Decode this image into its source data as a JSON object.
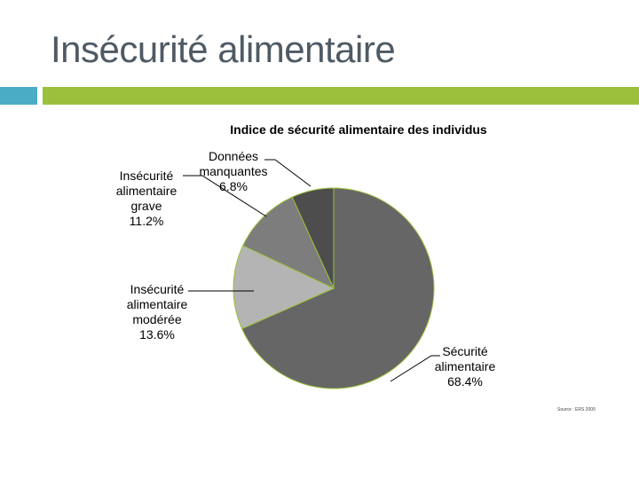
{
  "slide": {
    "title": "Insécurité alimentaire",
    "source": "Source : ERS 2009"
  },
  "colors": {
    "title_text": "#4f5a64",
    "accent_blue": "#4bacc6",
    "accent_green": "#9bc13c"
  },
  "chart_data": {
    "type": "pie",
    "title": "Indice de sécurité alimentaire des individus",
    "slices": [
      {
        "label": [
          "Sécurité",
          "alimentaire",
          "68.4%"
        ],
        "value": 68.4,
        "color": "#666666"
      },
      {
        "label": [
          "Insécurité",
          "alimentaire",
          "modérée",
          "13.6%"
        ],
        "value": 13.6,
        "color": "#b4b4b4"
      },
      {
        "label": [
          "Insécurité",
          "alimentaire",
          "grave",
          "11.2%"
        ],
        "value": 11.2,
        "color": "#7d7d7d"
      },
      {
        "label": [
          "Données",
          "manquantes",
          "6.8%"
        ],
        "value": 6.8,
        "color": "#4d4d4d"
      }
    ],
    "legend": "none"
  }
}
